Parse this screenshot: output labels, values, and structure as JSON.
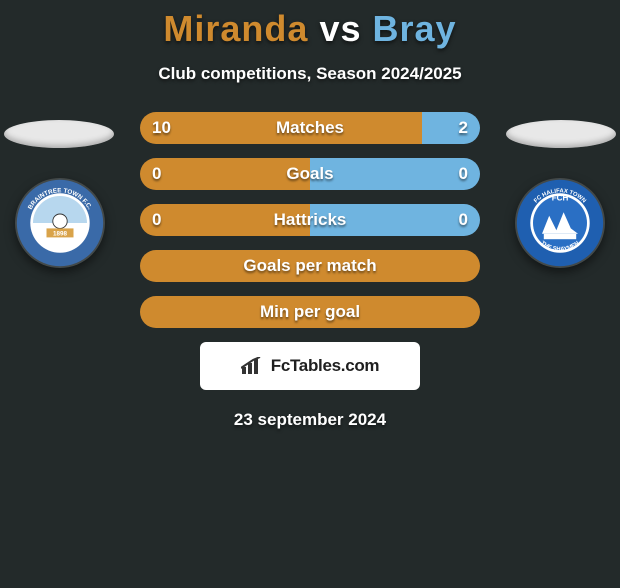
{
  "title": {
    "left": "Miranda",
    "separator": "vs",
    "right": "Bray",
    "color_left": "#cf8a2e",
    "color_sep": "#ffffff",
    "color_right": "#6fb4e0"
  },
  "subtitle": "Club competitions, Season 2024/2025",
  "player_left": {
    "color": "#cf8a2e"
  },
  "player_right": {
    "color": "#6fb4e0"
  },
  "crest_left": {
    "ring_outer": "#3a6aa8",
    "ring_inner": "#ffffff",
    "center_top": "#b7d7ee",
    "center_bottom": "#ffffff",
    "accent": "#d9a34a",
    "text_color": "#ffffff",
    "year": "1898",
    "top_text": "BRAINTREE TOWN F.C.",
    "bottom_text": "THE IRON"
  },
  "crest_right": {
    "ring_outer": "#1f5fb0",
    "ring_inner": "#ffffff",
    "center_top": "#2a6fc4",
    "center_bottom": "#ffffff",
    "text_color": "#ffffff",
    "top_text": "FC HALIFAX TOWN",
    "bottom_text": "THE SHAYMEN"
  },
  "bars": [
    {
      "label": "Matches",
      "left_val": "10",
      "right_val": "2",
      "left_pct": 83,
      "right_pct": 17,
      "show_values": true
    },
    {
      "label": "Goals",
      "left_val": "0",
      "right_val": "0",
      "left_pct": 50,
      "right_pct": 50,
      "show_values": true
    },
    {
      "label": "Hattricks",
      "left_val": "0",
      "right_val": "0",
      "left_pct": 50,
      "right_pct": 50,
      "show_values": true
    },
    {
      "label": "Goals per match",
      "left_val": "",
      "right_val": "",
      "left_pct": 100,
      "right_pct": 0,
      "show_values": false
    },
    {
      "label": "Min per goal",
      "left_val": "",
      "right_val": "",
      "left_pct": 100,
      "right_pct": 0,
      "show_values": false
    }
  ],
  "bar_style": {
    "height": 32,
    "radius": 16,
    "gap": 14,
    "label_fontsize": 17,
    "label_color": "#ffffff"
  },
  "footer_brand": "FcTables.com",
  "date": "23 september 2024",
  "background": "#232a2a",
  "side_oval_color": "#e8e8e8"
}
